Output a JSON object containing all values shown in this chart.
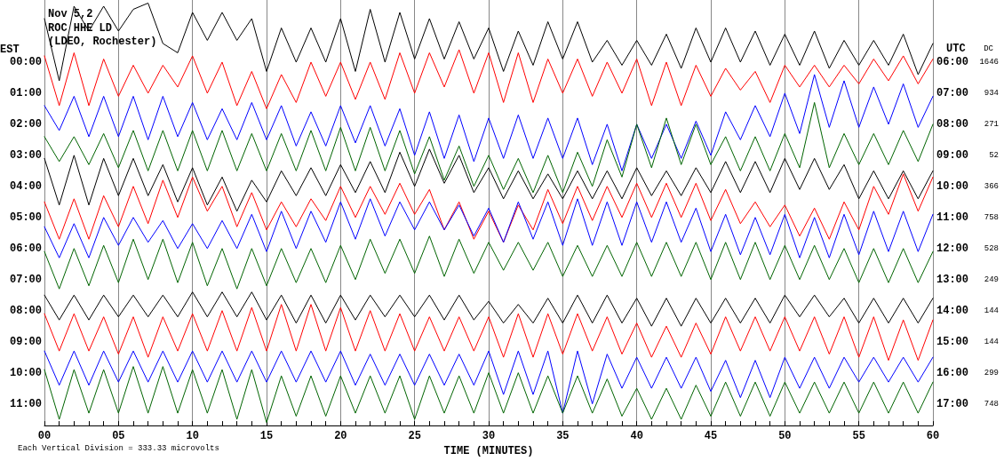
{
  "chart_data": {
    "type": "line",
    "title": "Nov 5,2",
    "subtitle": "ROC HHE LD\n(LDEO, Rochester)",
    "xlabel": "TIME (MINUTES)",
    "ylabel": "EST",
    "y2label": "UTC",
    "annotations": [
      "DC",
      "1646",
      "934",
      "271",
      "52",
      "366",
      "758",
      "528",
      "249",
      "144",
      "144",
      "299",
      "748",
      "Each Vertical Division = 333.33 microvolts"
    ],
    "x": [
      0,
      1,
      2,
      3,
      4,
      5,
      6,
      7,
      8,
      9,
      10,
      11,
      12,
      13,
      14,
      15,
      16,
      17,
      18,
      19,
      20,
      21,
      22,
      23,
      24,
      25,
      26,
      27,
      28,
      29,
      30,
      31,
      32,
      33,
      34,
      35,
      36,
      37,
      38,
      39,
      40,
      41,
      42,
      43,
      44,
      45,
      46,
      47,
      48,
      49,
      50,
      51,
      52,
      53,
      54,
      55,
      56,
      57,
      58,
      59,
      60
    ],
    "xlim": [
      0,
      60
    ],
    "xticks": [
      {
        "value": 0,
        "label": "00"
      },
      {
        "value": 1,
        "label": null
      },
      {
        "value": 2,
        "label": null
      },
      {
        "value": 3,
        "label": null
      },
      {
        "value": 4,
        "label": null
      },
      {
        "value": 5,
        "label": "05"
      },
      {
        "value": 6,
        "label": null
      },
      {
        "value": 7,
        "label": null
      },
      {
        "value": 8,
        "label": null
      },
      {
        "value": 9,
        "label": null
      },
      {
        "value": 10,
        "label": "10"
      },
      {
        "value": 11,
        "label": null
      },
      {
        "value": 12,
        "label": null
      },
      {
        "value": 13,
        "label": null
      },
      {
        "value": 14,
        "label": null
      },
      {
        "value": 15,
        "label": "15"
      },
      {
        "value": 16,
        "label": null
      },
      {
        "value": 17,
        "label": null
      },
      {
        "value": 18,
        "label": null
      },
      {
        "value": 19,
        "label": null
      },
      {
        "value": 20,
        "label": "20"
      },
      {
        "value": 21,
        "label": null
      },
      {
        "value": 22,
        "label": null
      },
      {
        "value": 23,
        "label": null
      },
      {
        "value": 24,
        "label": null
      },
      {
        "value": 25,
        "label": "25"
      },
      {
        "value": 26,
        "label": null
      },
      {
        "value": 27,
        "label": null
      },
      {
        "value": 28,
        "label": null
      },
      {
        "value": 29,
        "label": null
      },
      {
        "value": 30,
        "label": "30"
      },
      {
        "value": 31,
        "label": null
      },
      {
        "value": 32,
        "label": null
      },
      {
        "value": 33,
        "label": null
      },
      {
        "value": 34,
        "label": null
      },
      {
        "value": 35,
        "label": "35"
      },
      {
        "value": 36,
        "label": null
      },
      {
        "value": 37,
        "label": null
      },
      {
        "value": 38,
        "label": null
      },
      {
        "value": 39,
        "label": null
      },
      {
        "value": 40,
        "label": "40"
      },
      {
        "value": 41,
        "label": null
      },
      {
        "value": 42,
        "label": null
      },
      {
        "value": 43,
        "label": null
      },
      {
        "value": 44,
        "label": null
      },
      {
        "value": 45,
        "label": "45"
      },
      {
        "value": 46,
        "label": null
      },
      {
        "value": 47,
        "label": null
      },
      {
        "value": 48,
        "label": null
      },
      {
        "value": 49,
        "label": null
      },
      {
        "value": 50,
        "label": "50"
      },
      {
        "value": 51,
        "label": null
      },
      {
        "value": 52,
        "label": null
      },
      {
        "value": 53,
        "label": null
      },
      {
        "value": 54,
        "label": null
      },
      {
        "value": 55,
        "label": "55"
      },
      {
        "value": 56,
        "label": null
      },
      {
        "value": 57,
        "label": null
      },
      {
        "value": 58,
        "label": null
      },
      {
        "value": 59,
        "label": null
      },
      {
        "value": 60,
        "label": "60"
      }
    ],
    "ylim": [
      11.7,
      -2
    ],
    "yticks": [
      {
        "value": 0,
        "label": "00:00"
      },
      {
        "value": 1,
        "label": "01:00"
      },
      {
        "value": 2,
        "label": "02:00"
      },
      {
        "value": 3,
        "label": "03:00"
      },
      {
        "value": 4,
        "label": "04:00"
      },
      {
        "value": 5,
        "label": "05:00"
      },
      {
        "value": 6,
        "label": "06:00"
      },
      {
        "value": 7,
        "label": "07:00"
      },
      {
        "value": 8,
        "label": "08:00"
      },
      {
        "value": 9,
        "label": "09:00"
      },
      {
        "value": 10,
        "label": "10:00"
      },
      {
        "value": 11,
        "label": "11:00"
      }
    ],
    "y2lim": [
      17.7,
      4
    ],
    "y2ticks": [
      {
        "value": 6,
        "label": "06:00"
      },
      {
        "value": 7,
        "label": "07:00"
      },
      {
        "value": 8,
        "label": "08:00"
      },
      {
        "value": 9,
        "label": "09:00"
      },
      {
        "value": 10,
        "label": "10:00"
      },
      {
        "value": 11,
        "label": "11:00"
      },
      {
        "value": 12,
        "label": "12:00"
      },
      {
        "value": 13,
        "label": "13:00"
      },
      {
        "value": 14,
        "label": "14:00"
      },
      {
        "value": 15,
        "label": "15:00"
      },
      {
        "value": 16,
        "label": "16:00"
      },
      {
        "value": 17,
        "label": "17:00"
      }
    ],
    "grid": "x",
    "series": [
      {
        "color": "#000000",
        "values": [
          -1.4,
          0.6,
          -1.8,
          -1.0,
          -1.8,
          -1.0,
          -1.7,
          -1.9,
          -0.6,
          -0.3,
          -1.6,
          -0.7,
          -1.6,
          -0.7,
          -1.4,
          0.3,
          -1.1,
          0,
          -1.1,
          0,
          -1.4,
          0.3,
          -1.7,
          0,
          -1.6,
          -0.1,
          -1.4,
          -0.1,
          -1.3,
          -0.1,
          -1.1,
          0.3,
          -1.0,
          0.1,
          -1.3,
          -0.1,
          -1.3,
          0,
          -0.7,
          0.1,
          -0.7,
          0.1,
          -0.9,
          0.2,
          -1.1,
          0,
          -1.1,
          0,
          -1.0,
          0.1,
          -0.9,
          0.1,
          -1.0,
          0.2,
          -0.7,
          0.1,
          -0.7,
          0.1,
          -0.9,
          0.4,
          -0.6
        ]
      },
      {
        "color": "#ff0000",
        "values": [
          -0.2,
          1.4,
          -0.3,
          1.4,
          -0.1,
          1.1,
          0.1,
          1.0,
          0.1,
          0.8,
          -0.2,
          1.0,
          0,
          1.4,
          0.3,
          1.5,
          0.4,
          1.3,
          0,
          1.1,
          0,
          1.2,
          0,
          1.2,
          -0.3,
          1.0,
          -0.3,
          0.8,
          -0.4,
          1.0,
          -0.3,
          1.3,
          -0.3,
          1.3,
          -0.1,
          1.0,
          -0.1,
          1.1,
          0,
          1.0,
          -0.1,
          1.4,
          0,
          1.4,
          0.1,
          1.1,
          0.2,
          0.9,
          0.3,
          1.3,
          0.1,
          0.8,
          0.1,
          0.8,
          0.1,
          0.7,
          -0.1,
          0.6,
          -0.2,
          0.7,
          -0.1
        ]
      },
      {
        "color": "#0000ff",
        "values": [
          1.4,
          2.2,
          1.1,
          2.4,
          1.1,
          2.4,
          1.1,
          2.5,
          1.1,
          2.4,
          1.3,
          2.5,
          1.5,
          2.5,
          1.3,
          2.5,
          1.4,
          2.7,
          1.6,
          2.7,
          1.4,
          2.6,
          1.4,
          2.7,
          1.5,
          3.0,
          1.6,
          3.1,
          1.7,
          3.2,
          1.8,
          3.1,
          1.7,
          3.1,
          1.8,
          3.1,
          1.8,
          3.3,
          2.0,
          3.5,
          2.0,
          3.1,
          2.0,
          3.1,
          1.9,
          3.0,
          1.6,
          2.5,
          1.4,
          2.4,
          1.0,
          2.3,
          0.4,
          2.1,
          0.6,
          2.1,
          0.8,
          2.0,
          0.7,
          2.1,
          1.1
        ]
      },
      {
        "color": "#006400",
        "values": [
          2.4,
          3.2,
          2.4,
          3.3,
          2.3,
          3.4,
          2.2,
          3.5,
          2.2,
          3.5,
          2.2,
          3.5,
          2.2,
          3.5,
          2.3,
          3.5,
          2.3,
          3.5,
          2.2,
          3.5,
          2.1,
          3.5,
          2.1,
          3.5,
          2.2,
          3.6,
          2.4,
          3.8,
          2.7,
          4.0,
          3.0,
          4.1,
          3.1,
          4.2,
          3.0,
          4.2,
          2.9,
          4.0,
          2.5,
          3.7,
          2.0,
          3.4,
          1.8,
          3.3,
          2.0,
          3.3,
          2.4,
          3.5,
          2.4,
          3.5,
          2.3,
          3.4,
          1.3,
          3.4,
          2.3,
          3.3,
          2.3,
          3.3,
          2.2,
          3.2,
          2.0
        ]
      },
      {
        "color": "#000000",
        "values": [
          3.1,
          4.6,
          3.0,
          4.6,
          3.1,
          4.3,
          3.1,
          4.3,
          3.3,
          4.5,
          3.4,
          4.6,
          3.7,
          4.8,
          3.8,
          4.5,
          3.5,
          4.3,
          3.4,
          4.3,
          3.3,
          4.2,
          3.2,
          4.2,
          2.9,
          4.0,
          2.8,
          3.9,
          3.0,
          4.2,
          3.4,
          4.4,
          3.5,
          4.4,
          3.6,
          4.4,
          3.5,
          4.4,
          3.5,
          4.4,
          3.4,
          4.3,
          3.5,
          4.3,
          3.4,
          4.2,
          3.2,
          4.2,
          3.2,
          4.2,
          3.1,
          4.1,
          3.1,
          4.1,
          3.3,
          4.4,
          3.5,
          4.4,
          3.5,
          4.4,
          3.5
        ]
      },
      {
        "color": "#ff0000",
        "values": [
          4.5,
          5.7,
          4.4,
          5.7,
          4.3,
          5.3,
          4.0,
          5.2,
          3.8,
          5.0,
          3.7,
          4.8,
          4.0,
          5.3,
          4.2,
          5.4,
          4.5,
          5.3,
          4.4,
          5.1,
          4.0,
          5.0,
          4.0,
          4.9,
          3.9,
          4.9,
          4.1,
          5.4,
          4.5,
          5.7,
          4.8,
          5.8,
          4.6,
          5.4,
          4.1,
          5.2,
          4.0,
          5.1,
          4.0,
          5.0,
          3.9,
          5.0,
          3.9,
          5.0,
          3.9,
          5.1,
          4.1,
          5.2,
          4.5,
          5.3,
          4.6,
          5.6,
          4.7,
          5.7,
          4.5,
          5.4,
          4.0,
          4.9,
          3.6,
          4.8,
          3.7
        ]
      },
      {
        "color": "#0000ff",
        "values": [
          5.3,
          6.3,
          5.2,
          6.3,
          5.0,
          5.9,
          5.0,
          5.8,
          5.1,
          6.0,
          5.2,
          6.0,
          5.1,
          6.0,
          4.9,
          6.1,
          4.8,
          6.0,
          4.8,
          5.8,
          4.5,
          5.7,
          4.4,
          5.6,
          4.5,
          5.4,
          4.5,
          5.4,
          4.6,
          5.6,
          4.7,
          5.8,
          4.5,
          5.7,
          4.5,
          5.9,
          4.4,
          5.9,
          4.5,
          5.9,
          4.5,
          5.8,
          4.5,
          5.8,
          4.7,
          6.1,
          4.9,
          6.2,
          5.0,
          6.2,
          4.9,
          6.3,
          5.0,
          6.3,
          4.9,
          6.2,
          4.8,
          6.1,
          4.8,
          6.1,
          4.9
        ]
      },
      {
        "color": "#006400",
        "values": [
          6.1,
          7.3,
          6.0,
          7.2,
          5.9,
          7.1,
          5.7,
          7.0,
          5.7,
          7.1,
          5.8,
          7.2,
          6.0,
          7.3,
          6.0,
          7.2,
          6.0,
          7.1,
          6.0,
          7.1,
          5.9,
          7.0,
          5.7,
          6.8,
          5.7,
          6.8,
          5.6,
          6.9,
          5.7,
          6.8,
          5.8,
          6.7,
          5.8,
          6.7,
          5.8,
          6.9,
          5.9,
          6.9,
          5.9,
          6.9,
          5.8,
          6.9,
          5.8,
          6.9,
          5.8,
          7.0,
          5.8,
          7.0,
          5.8,
          7.0,
          5.9,
          7.0,
          5.9,
          7.0,
          6.0,
          7.1,
          6.0,
          7.1,
          6.0,
          7.1,
          6.1
        ]
      },
      {
        "color": "#000000",
        "values": [
          7.5,
          8.3,
          7.5,
          8.3,
          7.5,
          8.2,
          7.5,
          8.2,
          7.5,
          8.2,
          7.4,
          8.2,
          7.4,
          8.2,
          7.4,
          8.3,
          7.5,
          8.4,
          7.5,
          8.4,
          7.5,
          8.3,
          7.5,
          8.2,
          7.5,
          8.2,
          7.5,
          8.3,
          7.5,
          8.3,
          7.7,
          8.4,
          7.8,
          8.4,
          7.6,
          8.4,
          7.5,
          8.4,
          7.5,
          8.4,
          7.6,
          8.5,
          7.6,
          8.5,
          7.6,
          8.4,
          7.6,
          8.4,
          7.6,
          8.4,
          7.5,
          8.2,
          7.5,
          8.2,
          7.6,
          8.4,
          7.6,
          8.4,
          7.6,
          8.4,
          7.6
        ]
      },
      {
        "color": "#ff0000",
        "values": [
          8.1,
          9.3,
          8.1,
          9.3,
          8.2,
          9.4,
          8.2,
          9.5,
          8.2,
          9.3,
          8.1,
          9.3,
          8.0,
          9.3,
          7.9,
          9.3,
          7.8,
          9.3,
          7.8,
          9.3,
          7.9,
          9.3,
          8.0,
          9.3,
          8.1,
          9.3,
          8.2,
          9.3,
          8.2,
          9.3,
          8.2,
          9.5,
          8.1,
          9.5,
          8.1,
          9.4,
          8.1,
          9.3,
          8.2,
          9.4,
          8.4,
          9.5,
          8.5,
          9.5,
          8.4,
          9.4,
          8.2,
          9.3,
          8.2,
          9.3,
          8.2,
          9.3,
          8.2,
          9.4,
          8.2,
          9.5,
          8.2,
          9.6,
          8.3,
          9.6,
          8.3
        ]
      },
      {
        "color": "#0000ff",
        "values": [
          9.3,
          10.4,
          9.3,
          10.4,
          9.3,
          10.3,
          9.3,
          10.3,
          9.3,
          10.3,
          9.3,
          10.3,
          9.3,
          10.3,
          9.3,
          10.3,
          9.3,
          10.3,
          9.3,
          10.3,
          9.3,
          10.4,
          9.4,
          10.4,
          9.4,
          10.4,
          9.4,
          10.4,
          9.4,
          10.4,
          9.3,
          10.7,
          9.3,
          10.7,
          9.3,
          11.3,
          9.3,
          11.0,
          9.4,
          10.5,
          9.5,
          10.5,
          9.5,
          10.5,
          9.5,
          10.6,
          9.6,
          10.8,
          9.6,
          10.8,
          9.5,
          10.5,
          9.5,
          10.5,
          9.5,
          10.3,
          9.5,
          10.3,
          9.5,
          10.3,
          9.5
        ]
      },
      {
        "color": "#006400",
        "values": [
          9.9,
          11.5,
          9.9,
          11.3,
          9.9,
          11.3,
          9.8,
          11.3,
          9.8,
          11.3,
          9.9,
          11.3,
          9.9,
          11.5,
          9.9,
          11.6,
          10.1,
          11.4,
          10.1,
          11.4,
          10.1,
          11.3,
          10.1,
          11.3,
          10.1,
          11.5,
          10.1,
          11.3,
          10.1,
          11.3,
          10.0,
          11.3,
          10.0,
          11.3,
          10.1,
          11.3,
          10.1,
          11.3,
          10.2,
          11.4,
          10.5,
          11.5,
          10.5,
          11.5,
          10.4,
          11.4,
          10.3,
          11.4,
          10.3,
          11.4,
          10.3,
          11.3,
          10.3,
          11.3,
          10.3,
          11.3,
          10.3,
          11.3,
          10.3,
          11.3,
          10.3
        ]
      }
    ]
  }
}
